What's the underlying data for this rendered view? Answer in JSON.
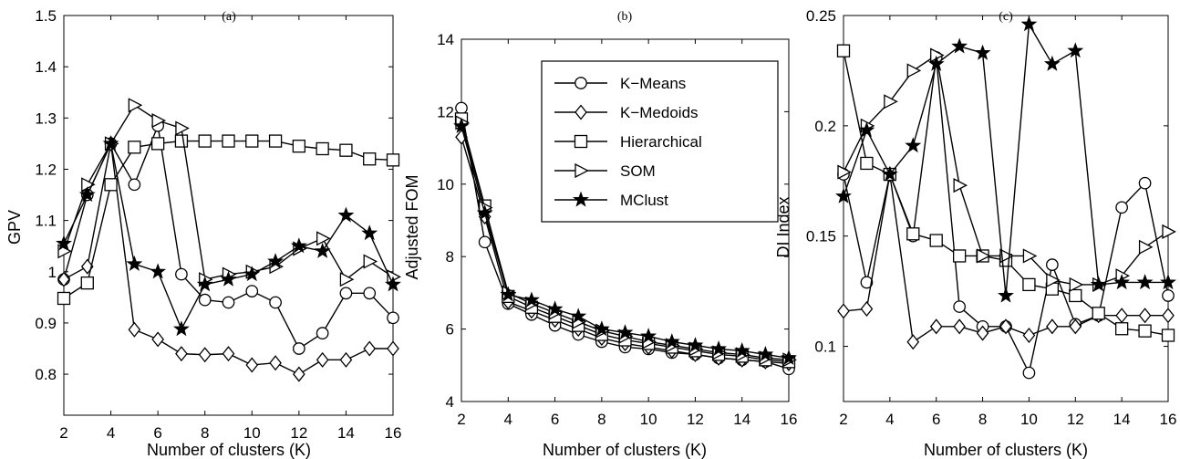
{
  "figure": {
    "legend_placement": "top-right of panel (b)",
    "grid": false,
    "line_color": "#000000"
  },
  "chart_data": [
    {
      "type": "line",
      "title": "(a)",
      "xlabel": "Number of clusters (K)",
      "ylabel": "GPV",
      "xlim": [
        2,
        16
      ],
      "ylim": [
        0.72,
        1.5
      ],
      "xticks": [
        2,
        4,
        6,
        8,
        10,
        12,
        14,
        16
      ],
      "yticks": [
        0.8,
        0.9,
        1,
        1.1,
        1.2,
        1.3,
        1.4,
        1.5
      ],
      "ytick_labels": [
        "0.8",
        "0.9",
        "1",
        "1.1",
        "1.2",
        "1.3",
        "1.4",
        "1.5"
      ],
      "x": [
        2,
        3,
        4,
        5,
        6,
        7,
        8,
        9,
        10,
        11,
        12,
        13,
        14,
        15,
        16
      ],
      "series": [
        {
          "name": "K-Means",
          "marker": "circle",
          "values": [
            0.985,
            1.15,
            1.25,
            1.17,
            1.285,
            0.995,
            0.945,
            0.94,
            0.962,
            0.94,
            0.85,
            0.88,
            0.958,
            0.958,
            0.91
          ]
        },
        {
          "name": "K-Medoids",
          "marker": "diamond",
          "values": [
            0.985,
            1.01,
            1.25,
            0.887,
            0.868,
            0.84,
            0.838,
            0.84,
            0.818,
            0.822,
            0.8,
            0.828,
            0.828,
            0.85,
            0.85
          ]
        },
        {
          "name": "Hierarchical",
          "marker": "square",
          "values": [
            0.948,
            0.978,
            1.17,
            1.243,
            1.25,
            1.255,
            1.255,
            1.255,
            1.255,
            1.255,
            1.245,
            1.24,
            1.237,
            1.22,
            1.218
          ]
        },
        {
          "name": "SOM",
          "marker": "triangle-right",
          "values": [
            1.04,
            1.17,
            1.25,
            1.325,
            1.295,
            1.28,
            0.985,
            0.995,
            1.0,
            1.01,
            1.045,
            1.065,
            0.985,
            1.02,
            0.99
          ]
        },
        {
          "name": "MClust",
          "marker": "star",
          "values": [
            1.055,
            1.15,
            1.25,
            1.015,
            1.0,
            0.888,
            0.975,
            0.985,
            0.995,
            1.02,
            1.05,
            1.04,
            1.11,
            1.075,
            0.975
          ]
        }
      ]
    },
    {
      "type": "line",
      "title": "(b)",
      "xlabel": "Number of clusters (K)",
      "ylabel": "Adjusted FOM",
      "xlim": [
        2,
        16
      ],
      "ylim": [
        4,
        14
      ],
      "xticks": [
        2,
        4,
        6,
        8,
        10,
        12,
        14,
        16
      ],
      "yticks": [
        4,
        6,
        8,
        10,
        12,
        14
      ],
      "ytick_labels": [
        "4",
        "6",
        "8",
        "10",
        "12",
        "14"
      ],
      "x": [
        2,
        3,
        4,
        5,
        6,
        7,
        8,
        9,
        10,
        11,
        12,
        13,
        14,
        15,
        16
      ],
      "series": [
        {
          "name": "K-Means",
          "marker": "circle",
          "values": [
            12.1,
            8.4,
            6.7,
            6.4,
            6.1,
            5.85,
            5.65,
            5.5,
            5.45,
            5.35,
            5.3,
            5.2,
            5.15,
            5.1,
            4.9
          ]
        },
        {
          "name": "K-Medoids",
          "marker": "diamond",
          "values": [
            11.3,
            9.1,
            6.75,
            6.5,
            6.25,
            6.0,
            5.75,
            5.6,
            5.5,
            5.4,
            5.3,
            5.2,
            5.15,
            5.1,
            5.05
          ]
        },
        {
          "name": "Hierarchical",
          "marker": "square",
          "values": [
            11.8,
            9.4,
            6.9,
            6.6,
            6.35,
            6.1,
            5.85,
            5.7,
            5.6,
            5.5,
            5.4,
            5.3,
            5.25,
            5.15,
            5.1
          ]
        },
        {
          "name": "SOM",
          "marker": "triangle-right",
          "values": [
            11.7,
            9.35,
            7.0,
            6.7,
            6.45,
            6.2,
            5.95,
            5.8,
            5.65,
            5.55,
            5.45,
            5.35,
            5.3,
            5.2,
            5.15
          ]
        },
        {
          "name": "MClust",
          "marker": "star",
          "values": [
            11.6,
            9.2,
            6.95,
            6.8,
            6.55,
            6.35,
            6.0,
            5.9,
            5.8,
            5.65,
            5.55,
            5.45,
            5.4,
            5.3,
            5.2
          ]
        }
      ]
    },
    {
      "type": "line",
      "title": "(c)",
      "xlabel": "Number of clusters (K)",
      "ylabel": "DI Index",
      "xlim": [
        2,
        16
      ],
      "ylim": [
        0.075,
        0.25
      ],
      "xticks": [
        2,
        4,
        6,
        8,
        10,
        12,
        14,
        16
      ],
      "yticks": [
        0.1,
        0.15,
        0.2,
        0.25
      ],
      "ytick_labels": [
        "0.1",
        "0.15",
        "0.2",
        "0.25"
      ],
      "x": [
        2,
        3,
        4,
        5,
        6,
        7,
        8,
        9,
        10,
        11,
        12,
        13,
        14,
        15,
        16
      ],
      "series": [
        {
          "name": "K-Means",
          "marker": "circle",
          "values": [
            0.178,
            0.129,
            0.178,
            0.15,
            0.231,
            0.118,
            0.109,
            0.109,
            0.088,
            0.137,
            0.11,
            0.114,
            0.163,
            0.174,
            0.123
          ]
        },
        {
          "name": "K-Medoids",
          "marker": "diamond",
          "values": [
            0.116,
            0.117,
            0.178,
            0.102,
            0.109,
            0.109,
            0.106,
            0.109,
            0.105,
            0.109,
            0.109,
            0.114,
            0.114,
            0.114,
            0.114
          ]
        },
        {
          "name": "Hierarchical",
          "marker": "square",
          "values": [
            0.234,
            0.183,
            0.178,
            0.151,
            0.148,
            0.141,
            0.141,
            0.139,
            0.128,
            0.126,
            0.123,
            0.115,
            0.108,
            0.107,
            0.105
          ]
        },
        {
          "name": "SOM",
          "marker": "triangle-right",
          "values": [
            0.179,
            0.2,
            0.211,
            0.225,
            0.232,
            0.173,
            0.141,
            0.141,
            0.141,
            0.13,
            0.128,
            0.128,
            0.132,
            0.145,
            0.152
          ]
        },
        {
          "name": "MClust",
          "marker": "star",
          "values": [
            0.168,
            0.198,
            0.178,
            0.191,
            0.228,
            0.236,
            0.233,
            0.123,
            0.246,
            0.228,
            0.234,
            0.128,
            0.129,
            0.129,
            0.129
          ]
        }
      ]
    }
  ]
}
